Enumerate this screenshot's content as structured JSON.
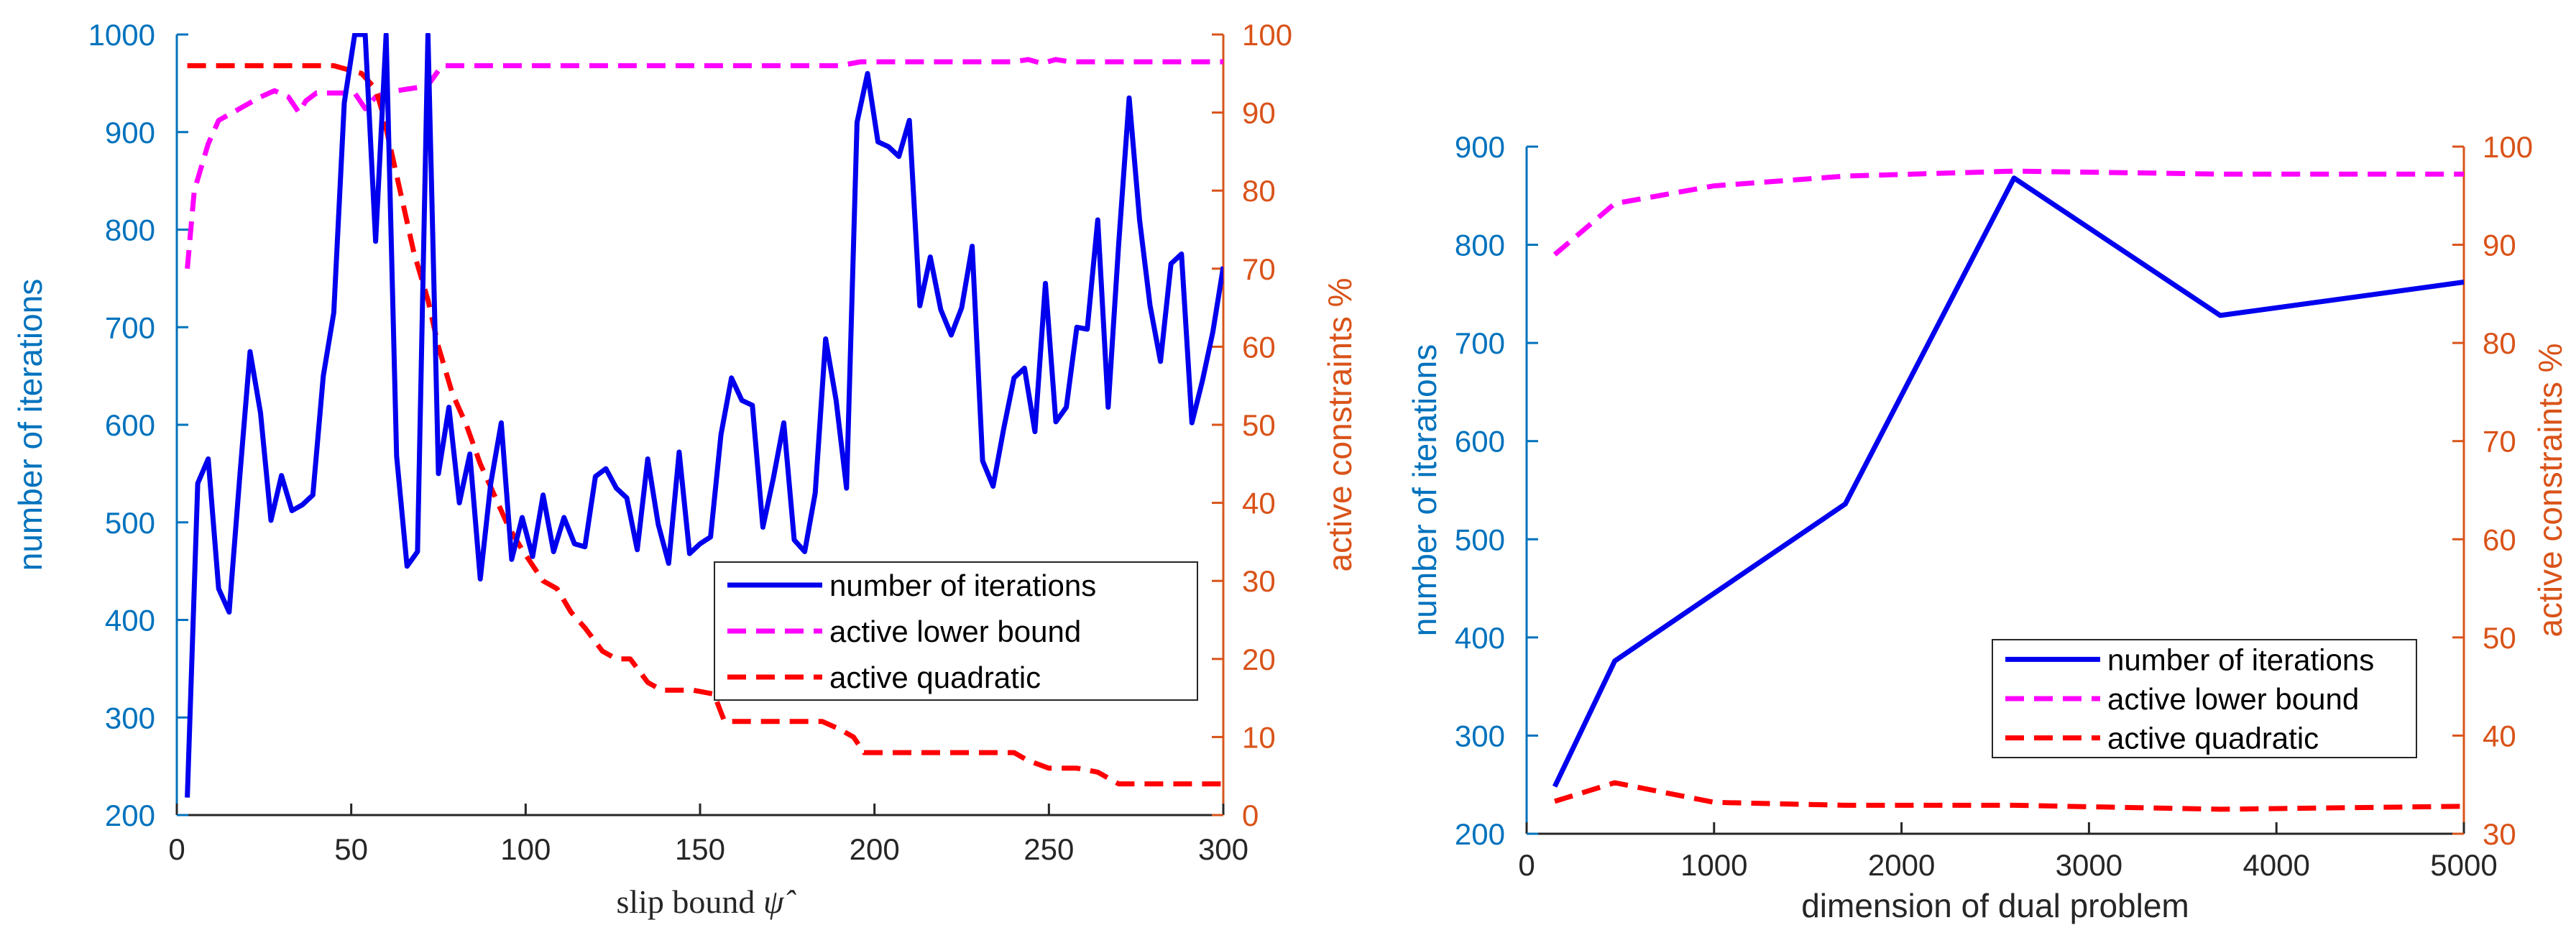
{
  "colors": {
    "iterations": "#0000EE",
    "lower_bound": "#FF00FF",
    "quadratic": "#FF0000",
    "left_axis": "#0072BD",
    "right_axis": "#D95319",
    "axis": "#262626"
  },
  "chart_data": [
    {
      "type": "line",
      "title": "",
      "xlabel": "slip bound ψ̂",
      "xlabel_text": "slip bound",
      "xlabel_symbol": "ψ̂",
      "ylabel": "number of iterations",
      "ylabel_right": "active constraints %",
      "xlim": [
        0,
        300
      ],
      "ylim": [
        200,
        1000
      ],
      "ylim_right": [
        0,
        100
      ],
      "xticks": [
        "0",
        "50",
        "100",
        "150",
        "200",
        "250",
        "300"
      ],
      "yticks": [
        "200",
        "300",
        "400",
        "500",
        "600",
        "700",
        "800",
        "900",
        "1000"
      ],
      "yticks_right": [
        "0",
        "10",
        "20",
        "30",
        "40",
        "50",
        "60",
        "70",
        "80",
        "90",
        "100"
      ],
      "legend": [
        "number of iterations",
        "active lower bound",
        "active quadratic"
      ],
      "legend_position": "lower-right",
      "series": [
        {
          "name": "number of iterations",
          "axis": "left",
          "x": [
            3,
            6,
            9,
            12,
            15,
            18,
            21,
            24,
            27,
            30,
            33,
            36,
            39,
            42,
            45,
            48,
            51,
            54,
            57,
            60,
            63,
            66,
            69,
            72,
            75,
            78,
            81,
            84,
            87,
            90,
            93,
            96,
            99,
            102,
            105,
            108,
            111,
            114,
            117,
            120,
            123,
            126,
            129,
            132,
            135,
            138,
            141,
            144,
            147,
            150,
            153,
            156,
            159,
            162,
            165,
            168,
            171,
            174,
            177,
            180,
            183,
            186,
            189,
            192,
            195,
            198,
            201,
            204,
            207,
            210,
            213,
            216,
            219,
            222,
            225,
            228,
            231,
            234,
            237,
            240,
            243,
            246,
            249,
            252,
            255,
            258,
            261,
            264,
            267,
            270,
            273,
            276,
            279,
            282,
            285,
            288,
            291,
            294,
            297,
            300
          ],
          "values": [
            218,
            540,
            565,
            432,
            408,
            545,
            675,
            612,
            502,
            548,
            512,
            518,
            528,
            650,
            715,
            930,
            1000,
            1000,
            788,
            1000,
            568,
            455,
            470,
            1000,
            550,
            618,
            520,
            570,
            442,
            540,
            602,
            462,
            505,
            465,
            528,
            470,
            505,
            478,
            475,
            547,
            555,
            535,
            525,
            472,
            565,
            498,
            458,
            572,
            468,
            478,
            485,
            590,
            648,
            625,
            620,
            495,
            545,
            602,
            482,
            470,
            530,
            688,
            625,
            535,
            910,
            960,
            890,
            885,
            875,
            912,
            722,
            772,
            718,
            692,
            720,
            783,
            563,
            537,
            595,
            648,
            658,
            593,
            745,
            603,
            618,
            700,
            698,
            810,
            618,
            785,
            935,
            810,
            722,
            665,
            765,
            775,
            602,
            645,
            695,
            762
          ]
        },
        {
          "name": "active lower bound",
          "axis": "right",
          "x": [
            3,
            5,
            7,
            9,
            12,
            16,
            20,
            24,
            28,
            32,
            35,
            37,
            40,
            44,
            48,
            51,
            54,
            57,
            60,
            63,
            66,
            69,
            72,
            76,
            80,
            100,
            150,
            190,
            196,
            200,
            240,
            244,
            248,
            252,
            256,
            300
          ],
          "values": [
            70,
            80,
            83,
            86,
            89,
            90,
            91,
            92,
            92.8,
            92,
            90,
            91.5,
            92.5,
            92.5,
            92.5,
            92.5,
            90.5,
            92,
            92.5,
            92.8,
            93,
            93.2,
            93.5,
            96,
            96,
            96,
            96,
            96,
            96.5,
            96.5,
            96.5,
            96.8,
            96.3,
            96.8,
            96.5,
            96.5
          ]
        },
        {
          "name": "active quadratic",
          "axis": "right",
          "x": [
            3,
            45,
            53,
            57,
            59,
            62,
            65,
            68,
            72,
            75,
            79,
            83,
            87,
            91,
            95,
            99,
            102,
            105,
            109,
            113,
            117,
            122,
            126,
            130,
            135,
            139,
            148,
            154,
            157,
            160,
            170,
            185,
            190,
            194,
            197,
            240,
            244,
            250,
            258,
            264,
            270,
            274,
            300
          ],
          "values": [
            96,
            96,
            95,
            93,
            90,
            84,
            78,
            72,
            66,
            60,
            54,
            50,
            45,
            41,
            37,
            34,
            32,
            30,
            29,
            26,
            24,
            21,
            20,
            20,
            17,
            16,
            16,
            15.5,
            12,
            12,
            12,
            12,
            11,
            10,
            8,
            8,
            7,
            6,
            6,
            5.5,
            4,
            4,
            4
          ]
        }
      ]
    },
    {
      "type": "line",
      "title": "",
      "xlabel": "dimension of dual problem",
      "ylabel": "number of iterations",
      "ylabel_right": "active constraints %",
      "xlim": [
        0,
        5000
      ],
      "ylim": [
        200,
        900
      ],
      "ylim_right": [
        30,
        100
      ],
      "xticks": [
        "0",
        "1000",
        "2000",
        "3000",
        "4000",
        "5000"
      ],
      "yticks": [
        "200",
        "300",
        "400",
        "500",
        "600",
        "700",
        "800",
        "900"
      ],
      "yticks_right": [
        "30",
        "40",
        "50",
        "60",
        "70",
        "80",
        "90",
        "100"
      ],
      "legend": [
        "number of iterations",
        "active lower bound",
        "active quadratic"
      ],
      "legend_position": "lower-right",
      "series": [
        {
          "name": "number of iterations",
          "axis": "left",
          "x": [
            150,
            470,
            1700,
            2600,
            3700,
            5000
          ],
          "values": [
            248,
            376,
            536,
            868,
            728,
            762
          ]
        },
        {
          "name": "active lower bound",
          "axis": "right",
          "x": [
            150,
            470,
            1000,
            1700,
            2600,
            3700,
            5000
          ],
          "values": [
            89,
            94.2,
            96,
            97,
            97.5,
            97.2,
            97.2
          ]
        },
        {
          "name": "active quadratic",
          "axis": "right",
          "x": [
            150,
            470,
            1000,
            1700,
            2600,
            3700,
            5000
          ],
          "values": [
            33.3,
            35.2,
            33.2,
            32.9,
            32.9,
            32.5,
            32.8
          ]
        }
      ]
    }
  ]
}
